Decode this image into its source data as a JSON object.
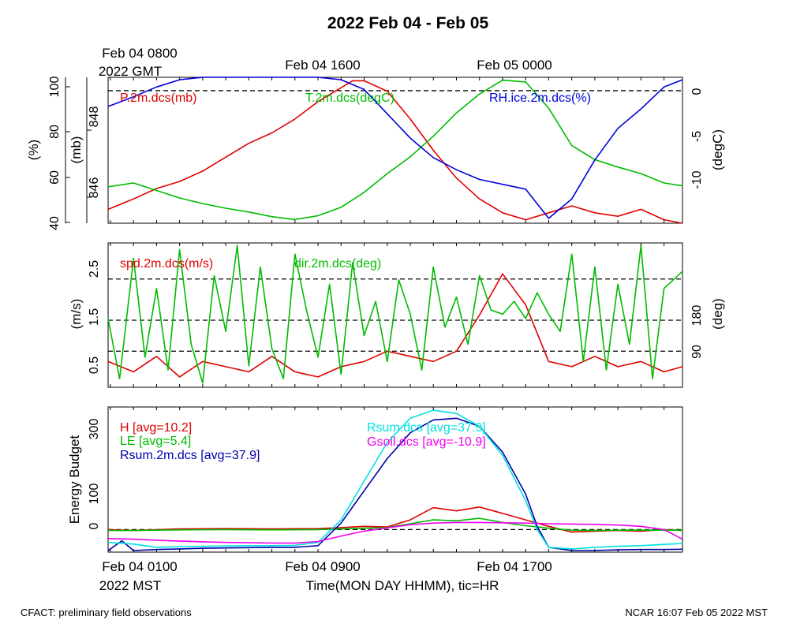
{
  "page": {
    "title": "2022 Feb 04 - Feb 05",
    "top_time_labels": [
      "Feb 04 0800",
      "Feb 04 1600",
      "Feb 05 0000"
    ],
    "top_time_sublabel": "2022 GMT",
    "bottom_time_labels": [
      "Feb 04 0100",
      "Feb 04 0900",
      "Feb 04 1700"
    ],
    "bottom_time_sublabel": "2022 MST",
    "xlabel": "Time(MON DAY HHMM), tic=HR",
    "footer_left": "CFACT: preliminary field observations",
    "footer_right": "NCAR 16:07 Feb 05 2022 MST"
  },
  "colors": {
    "red": "#e00000",
    "green": "#00bb00",
    "blue": "#0000dd",
    "cyan": "#00e0e0",
    "navy": "#0000aa",
    "magenta": "#ee00ee"
  },
  "chart_data": [
    {
      "type": "line",
      "panel": "top",
      "x_range_hours_mst": [
        -1.1,
        23.8
      ],
      "axes": {
        "rh": {
          "label": "(%)",
          "ticks": [
            "40",
            "60",
            "80",
            "100"
          ],
          "range": [
            40,
            100
          ]
        },
        "p": {
          "label": "(mb)",
          "ticks": [
            "846",
            "848"
          ],
          "range": [
            845.3,
            849.5
          ]
        },
        "t": {
          "label": "(degC)",
          "ticks": [
            "0",
            "-5",
            "-10"
          ],
          "range": [
            -14.3,
            1.3
          ]
        }
      },
      "reference_lines": [
        {
          "axis": "rh",
          "value": 94.5
        }
      ],
      "series": [
        {
          "name": "P.2m.dcs(mb)",
          "axis": "p",
          "color": "red",
          "x": [
            -1.1,
            0,
            1,
            2,
            3,
            4,
            5,
            6,
            7,
            8,
            9,
            9.5,
            10,
            11,
            12,
            13,
            14,
            15,
            16,
            17,
            18,
            19,
            20,
            21,
            22,
            23,
            23.8
          ],
          "y": [
            845.7,
            846.0,
            846.3,
            846.5,
            846.8,
            847.2,
            847.6,
            847.9,
            848.3,
            848.8,
            849.2,
            849.4,
            849.4,
            849.1,
            848.3,
            847.4,
            846.6,
            846.0,
            845.6,
            845.4,
            845.6,
            845.8,
            845.6,
            845.5,
            845.7,
            845.4,
            845.3
          ]
        },
        {
          "name": "T.2m.dcs(degC)",
          "axis": "t",
          "color": "green",
          "x": [
            -1.1,
            0,
            1,
            2,
            3,
            4,
            5,
            6,
            7,
            8,
            9,
            10,
            11,
            12,
            13,
            14,
            15,
            16,
            17,
            18,
            19,
            20,
            21,
            22,
            23,
            23.8
          ],
          "y": [
            -10.4,
            -10.0,
            -10.8,
            -11.6,
            -12.2,
            -12.7,
            -13.1,
            -13.6,
            -13.9,
            -13.5,
            -12.6,
            -11.0,
            -9.0,
            -7.2,
            -5.0,
            -2.5,
            -0.5,
            1.0,
            0.8,
            -2.0,
            -6.0,
            -7.5,
            -8.3,
            -9.0,
            -10.0,
            -10.3
          ]
        },
        {
          "name": "RH.ice.2m.dcs(%)",
          "axis": "rh",
          "color": "blue",
          "x": [
            -1.1,
            0,
            1,
            2,
            3,
            4,
            5,
            6,
            7,
            8,
            9,
            10,
            11,
            12,
            13,
            14,
            15,
            16,
            17,
            18,
            19,
            20,
            21,
            22,
            23,
            23.8
          ],
          "y": [
            88,
            92,
            96,
            99,
            100,
            100,
            100,
            100,
            100,
            100,
            99,
            95,
            85,
            75,
            67,
            62,
            58,
            56,
            54,
            42,
            50,
            66,
            79,
            87,
            96,
            99
          ]
        }
      ]
    },
    {
      "type": "line",
      "panel": "middle",
      "x_range_hours_mst": [
        -1.1,
        23.8
      ],
      "axes": {
        "spd": {
          "label": "(m/s)",
          "ticks": [
            "0.5",
            "1.5",
            "2.5"
          ],
          "range": [
            0.1,
            2.9
          ]
        },
        "dir": {
          "label": "(deg)",
          "ticks": [
            "90",
            "180"
          ],
          "range": [
            20,
            356
          ]
        }
      },
      "reference_lines": [
        {
          "axis": "spd",
          "value": 0.8
        },
        {
          "axis": "spd",
          "value": 1.4
        },
        {
          "axis": "spd",
          "value": 2.2
        }
      ],
      "series": [
        {
          "name": "spd.2m.dcs(m/s)",
          "axis": "spd",
          "color": "red",
          "x": [
            -1.1,
            0,
            1,
            2,
            3,
            4,
            5,
            6,
            7,
            8,
            9,
            10,
            11,
            12,
            13,
            14,
            15,
            16,
            17,
            18,
            19,
            20,
            21,
            22,
            23,
            23.8
          ],
          "y": [
            0.6,
            0.4,
            0.7,
            0.3,
            0.6,
            0.5,
            0.4,
            0.7,
            0.4,
            0.3,
            0.5,
            0.6,
            0.8,
            0.7,
            0.6,
            0.8,
            1.5,
            2.3,
            1.7,
            0.6,
            0.5,
            0.7,
            0.5,
            0.6,
            0.4,
            0.5
          ]
        },
        {
          "name": "dir.2m.dcs(deg)",
          "axis": "dir",
          "color": "green",
          "x": [
            -1.1,
            -0.6,
            0,
            0.5,
            1,
            1.5,
            2,
            2.5,
            3,
            3.5,
            4,
            4.5,
            5,
            5.5,
            6,
            6.5,
            7,
            7.5,
            8,
            8.5,
            9,
            9.5,
            10,
            10.5,
            11,
            11.5,
            12,
            12.5,
            13,
            13.5,
            14,
            14.5,
            15,
            15.5,
            16,
            16.5,
            17,
            17.5,
            18,
            18.5,
            19,
            19.5,
            20,
            20.5,
            21,
            21.5,
            22,
            22.5,
            23,
            23.8
          ],
          "y": [
            180,
            40,
            320,
            90,
            250,
            60,
            340,
            120,
            30,
            280,
            150,
            350,
            70,
            300,
            110,
            40,
            330,
            200,
            90,
            260,
            50,
            310,
            140,
            220,
            80,
            270,
            190,
            60,
            300,
            160,
            230,
            120,
            280,
            200,
            190,
            220,
            180,
            240,
            190,
            150,
            330,
            80,
            300,
            60,
            260,
            120,
            350,
            40,
            250,
            290
          ]
        }
      ]
    },
    {
      "type": "line",
      "panel": "bottom",
      "x_range_hours_mst": [
        -1.1,
        23.8
      ],
      "ylabel": "Energy Budget",
      "axes": {
        "e": {
          "label": "Energy Budget",
          "ticks": [
            "0",
            "100",
            "300"
          ],
          "range": [
            -70,
            380
          ]
        }
      },
      "reference_lines": [
        {
          "axis": "e",
          "value": 0
        }
      ],
      "series": [
        {
          "name": "H [avg=10.2]",
          "axis": "e",
          "color": "red",
          "x": [
            -1.1,
            0,
            2,
            4,
            6,
            8,
            9,
            10,
            11,
            12,
            13,
            14,
            15,
            16,
            17,
            18,
            19,
            20,
            21,
            22,
            23,
            23.8
          ],
          "y": [
            0,
            -3,
            2,
            3,
            2,
            3,
            6,
            10,
            8,
            30,
            68,
            58,
            70,
            50,
            30,
            10,
            -8,
            -5,
            -3,
            -5,
            0,
            -3
          ]
        },
        {
          "name": "LE [avg=5.4]",
          "axis": "e",
          "color": "green",
          "x": [
            -1.1,
            0,
            2,
            4,
            6,
            8,
            9,
            10,
            11,
            12,
            13,
            14,
            15,
            16,
            17,
            18,
            19,
            20,
            21,
            22,
            23,
            23.8
          ],
          "y": [
            -3,
            -3,
            -1,
            0,
            -1,
            0,
            2,
            4,
            6,
            18,
            30,
            27,
            35,
            22,
            12,
            4,
            -2,
            -3,
            -2,
            -2,
            -2,
            -2
          ]
        },
        {
          "name": "Rsum.2m.dcs [avg=37.9]",
          "axis": "e",
          "color": "navy",
          "x": [
            -1.1,
            -0.5,
            0,
            1,
            2,
            3,
            4,
            5,
            6,
            7,
            8,
            9,
            10,
            11,
            12,
            13,
            14,
            15,
            16,
            17,
            17.5,
            18,
            19,
            20,
            21,
            22,
            23,
            23.8
          ],
          "y": [
            -65,
            -35,
            -65,
            -62,
            -60,
            -58,
            -57,
            -56,
            -55,
            -55,
            -50,
            20,
            120,
            220,
            300,
            340,
            345,
            320,
            240,
            110,
            10,
            -55,
            -65,
            -65,
            -63,
            -62,
            -62,
            -61
          ]
        },
        {
          "name": "Rsum.dcs [avg=37.9]",
          "axis": "e",
          "color": "cyan",
          "x": [
            -1.1,
            0,
            1,
            2,
            3,
            4,
            5,
            6,
            7,
            8,
            9,
            10,
            11,
            12,
            13,
            14,
            15,
            16,
            17,
            17.5,
            18,
            19,
            20,
            21,
            22,
            23,
            23.8
          ],
          "y": [
            -40,
            -45,
            -55,
            -53,
            -52,
            -51,
            -50,
            -50,
            -49,
            -40,
            30,
            150,
            270,
            345,
            370,
            360,
            320,
            230,
            90,
            0,
            -55,
            -60,
            -55,
            -52,
            -50,
            -46,
            -43
          ]
        },
        {
          "name": "Gsoil.dcs [avg=-10.9]",
          "axis": "e",
          "color": "magenta",
          "x": [
            -1.1,
            0,
            1,
            2,
            3,
            4,
            5,
            6,
            7,
            8,
            9,
            10,
            11,
            12,
            13,
            14,
            15,
            16,
            17,
            18,
            19,
            20,
            21,
            22,
            23,
            23.8
          ],
          "y": [
            -28,
            -30,
            -33,
            -36,
            -38,
            -40,
            -41,
            -42,
            -42,
            -37,
            -20,
            -5,
            5,
            15,
            20,
            22,
            22,
            21,
            20,
            18,
            17,
            16,
            14,
            10,
            0,
            -30
          ]
        }
      ]
    }
  ]
}
